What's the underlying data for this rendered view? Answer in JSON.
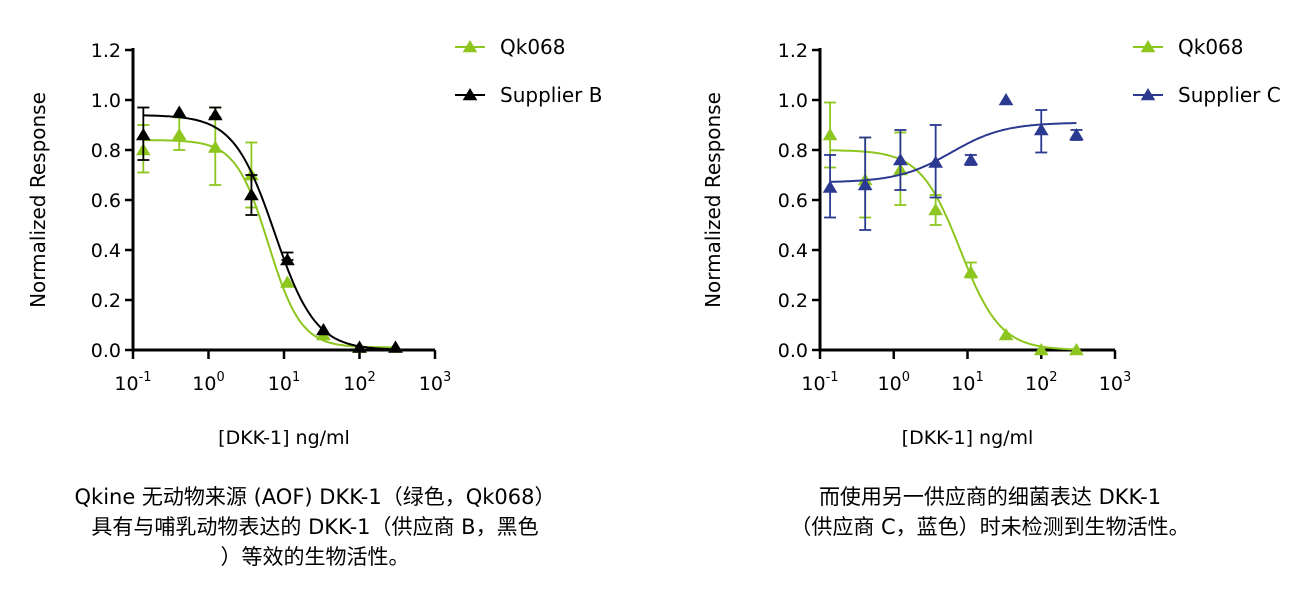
{
  "colors": {
    "qk068": "#8cc61e",
    "supplier_b": "#000000",
    "supplier_c": "#2b3990"
  },
  "chart_data": [
    {
      "type": "scatter",
      "ylabel": "Normalized Response",
      "xlabel": "[DKK-1] ng/ml",
      "xscale": "log",
      "xlim": [
        0.1,
        1000
      ],
      "ylim": [
        0,
        1.2
      ],
      "xticks": [
        {
          "base": "10",
          "exp": "-1"
        },
        {
          "base": "10",
          "exp": "0"
        },
        {
          "base": "10",
          "exp": "1"
        },
        {
          "base": "10",
          "exp": "2"
        },
        {
          "base": "10",
          "exp": "3"
        }
      ],
      "yticks": [
        "0.0",
        "0.2",
        "0.4",
        "0.6",
        "0.8",
        "1.0",
        "1.2"
      ],
      "grid": false,
      "legend_position": "top-right",
      "x": [
        0.137,
        0.41,
        1.23,
        3.7,
        11.1,
        33.3,
        100,
        300
      ],
      "series": [
        {
          "name": "Qk068",
          "color": "#8cc61e",
          "marker": "triangle",
          "values": [
            0.8,
            0.86,
            0.81,
            0.7,
            0.27,
            0.06,
            0.01,
            0.01
          ],
          "err_low": [
            0.71,
            0.8,
            0.66,
            0.57,
            null,
            null,
            null,
            null
          ],
          "err_high": [
            0.9,
            0.93,
            0.97,
            0.83,
            null,
            null,
            null,
            null
          ]
        },
        {
          "name": "Supplier B",
          "color": "#000000",
          "marker": "triangle",
          "values": [
            0.86,
            0.95,
            0.94,
            0.62,
            0.36,
            0.08,
            0.01,
            0.01
          ],
          "err_low": [
            0.76,
            null,
            0.93,
            0.54,
            0.36,
            null,
            null,
            null
          ],
          "err_high": [
            0.97,
            null,
            0.97,
            0.7,
            0.39,
            null,
            null,
            null
          ]
        }
      ]
    },
    {
      "type": "scatter",
      "ylabel": "Normalized Response",
      "xlabel": "[DKK-1] ng/ml",
      "xscale": "log",
      "xlim": [
        0.1,
        1000
      ],
      "ylim": [
        0,
        1.2
      ],
      "xticks": [
        {
          "base": "10",
          "exp": "-1"
        },
        {
          "base": "10",
          "exp": "0"
        },
        {
          "base": "10",
          "exp": "1"
        },
        {
          "base": "10",
          "exp": "2"
        },
        {
          "base": "10",
          "exp": "3"
        }
      ],
      "yticks": [
        "0.0",
        "0.2",
        "0.4",
        "0.6",
        "0.8",
        "1.0",
        "1.2"
      ],
      "grid": false,
      "legend_position": "top-right",
      "x": [
        0.137,
        0.41,
        1.23,
        3.7,
        11.1,
        33.3,
        100,
        300
      ],
      "series": [
        {
          "name": "Qk068",
          "color": "#8cc61e",
          "marker": "triangle",
          "values": [
            0.86,
            0.68,
            0.72,
            0.56,
            0.31,
            0.06,
            0.0,
            0.0
          ],
          "err_low": [
            0.73,
            0.53,
            0.58,
            0.5,
            0.29,
            null,
            null,
            null
          ],
          "err_high": [
            0.99,
            0.85,
            0.87,
            0.62,
            0.35,
            null,
            null,
            null
          ]
        },
        {
          "name": "Supplier C",
          "color": "#2b3990",
          "marker": "triangle",
          "values": [
            0.65,
            0.66,
            0.76,
            0.75,
            0.76,
            1.0,
            0.88,
            0.86
          ],
          "err_low": [
            0.53,
            0.48,
            0.64,
            0.61,
            0.74,
            null,
            0.79,
            0.84
          ],
          "err_high": [
            0.78,
            0.85,
            0.88,
            0.9,
            0.78,
            null,
            0.96,
            0.88
          ]
        }
      ]
    }
  ],
  "captions": {
    "left": [
      "Qkine 无动物来源 (AOF) DKK-1（绿色，Qk068）",
      "具有与哺乳动物表达的 DKK-1（供应商 B，黑色",
      "）等效的生物活性。"
    ],
    "right": [
      "而使用另一供应商的细菌表达 DKK-1",
      "（供应商 C，蓝色）时未检测到生物活性。"
    ]
  }
}
